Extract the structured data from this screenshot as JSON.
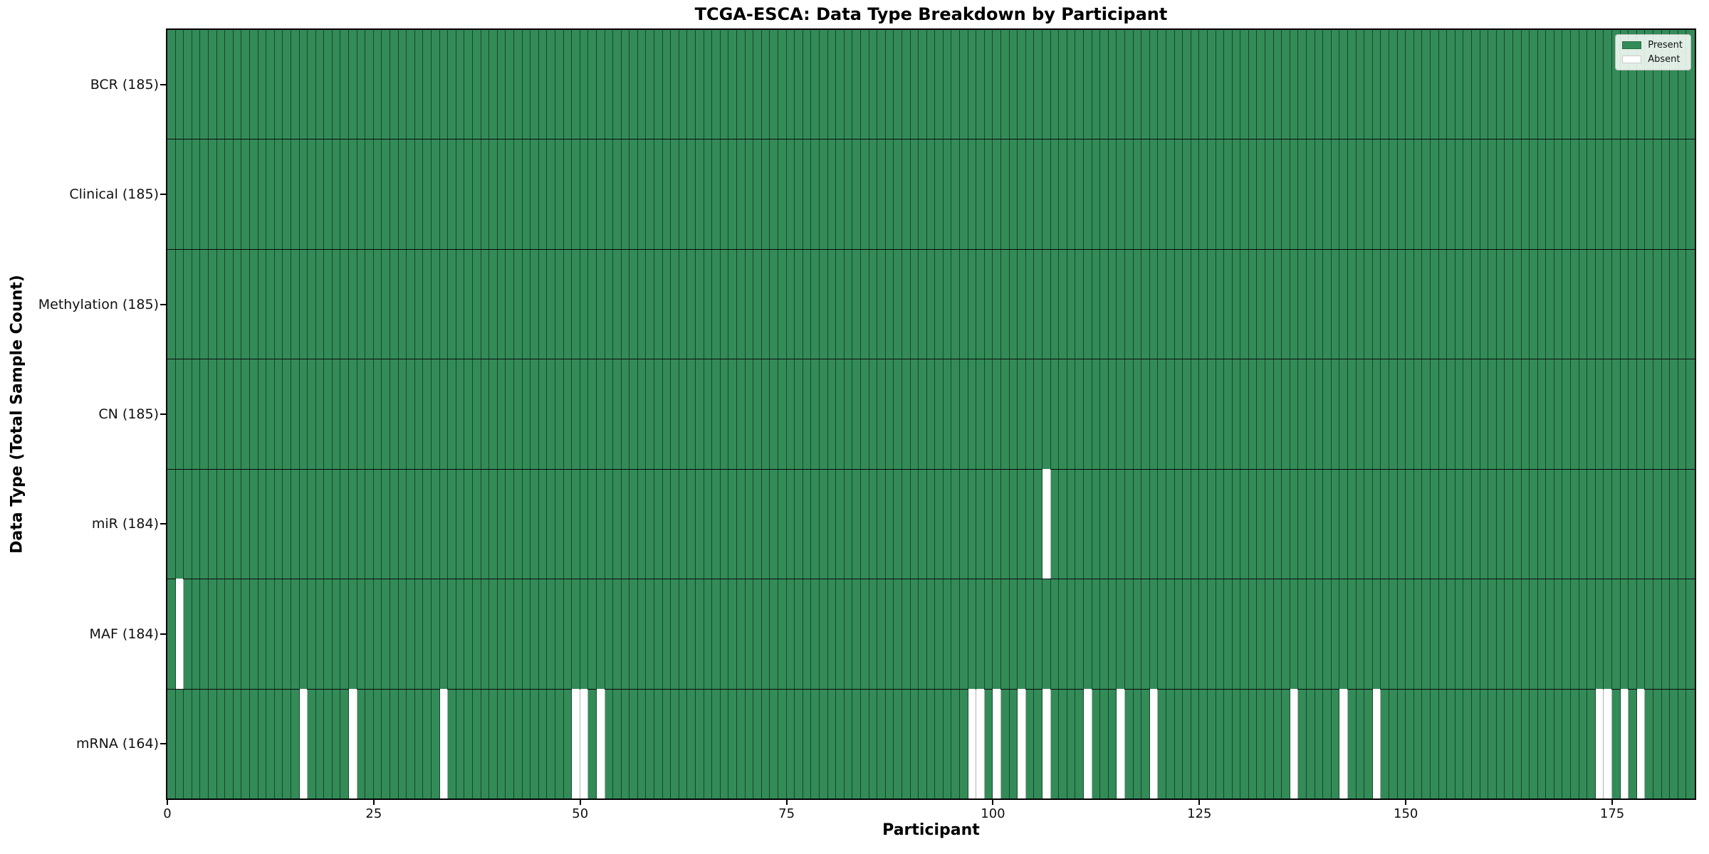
{
  "figure": {
    "title": "TCGA-ESCA: Data Type Breakdown by Participant",
    "xlabel": "Participant",
    "ylabel": "Data Type (Total Sample Count)"
  },
  "legend": {
    "items": [
      {
        "label": "Present",
        "color": "#338b58"
      },
      {
        "label": "Absent",
        "color": "#ffffff"
      }
    ]
  },
  "chart_data": {
    "type": "heatmap",
    "title": "TCGA-ESCA: Data Type Breakdown by Participant",
    "xlabel": "Participant",
    "ylabel": "Data Type (Total Sample Count)",
    "n_participants": 185,
    "x_ticks": [
      0,
      25,
      50,
      75,
      100,
      125,
      150,
      175
    ],
    "present_color": "#338b58",
    "absent_color": "#ffffff",
    "legend_position": "upper right",
    "rows": [
      {
        "name": "BCR",
        "label": "BCR (185)",
        "total": 185,
        "absent_participants": []
      },
      {
        "name": "Clinical",
        "label": "Clinical (185)",
        "total": 185,
        "absent_participants": []
      },
      {
        "name": "Methylation",
        "label": "Methylation (185)",
        "total": 185,
        "absent_participants": []
      },
      {
        "name": "CN",
        "label": "CN (185)",
        "total": 185,
        "absent_participants": []
      },
      {
        "name": "miR",
        "label": "miR (184)",
        "total": 184,
        "absent_participants": [
          106
        ]
      },
      {
        "name": "MAF",
        "label": "MAF (184)",
        "total": 184,
        "absent_participants": [
          1
        ]
      },
      {
        "name": "mRNA",
        "label": "mRNA (164)",
        "total": 164,
        "absent_participants": [
          16,
          22,
          33,
          49,
          50,
          52,
          97,
          98,
          100,
          103,
          106,
          111,
          115,
          119,
          136,
          142,
          146,
          173,
          174,
          176,
          178
        ]
      }
    ]
  }
}
